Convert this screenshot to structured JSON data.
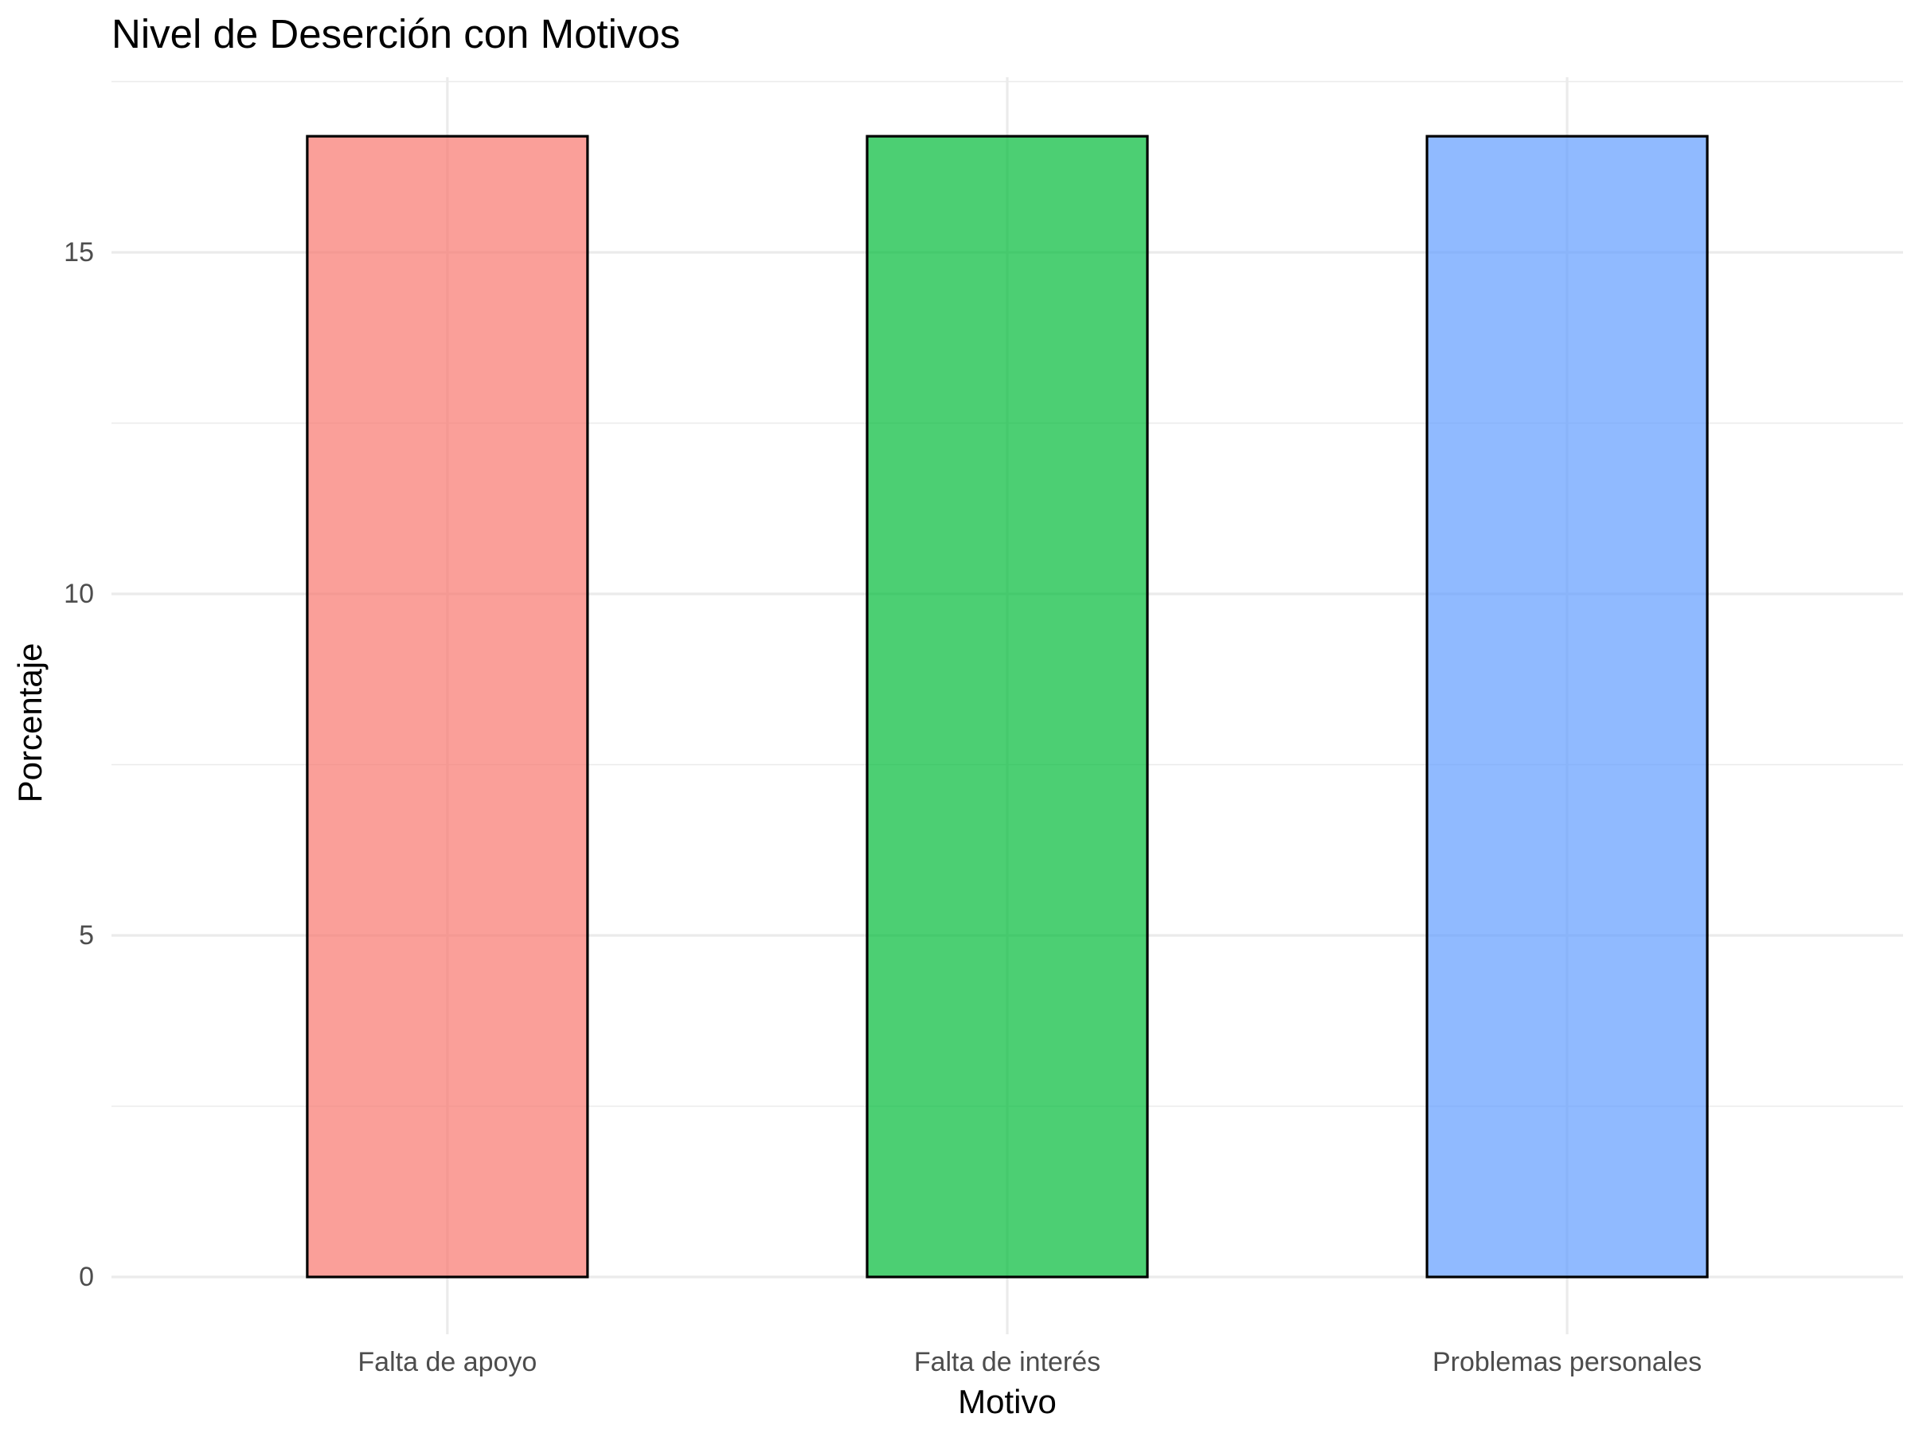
{
  "chart_data": {
    "type": "bar",
    "title": "Nivel de Deserción con Motivos",
    "xlabel": "Motivo",
    "ylabel": "Porcentaje",
    "categories": [
      "Falta de apoyo",
      "Falta de interés",
      "Problemas personales"
    ],
    "values": [
      16.7,
      16.7,
      16.7
    ],
    "colors": [
      "#f8766d",
      "#00ba38",
      "#619cff"
    ],
    "bar_opacity": 0.7,
    "ylim": [
      0,
      17.5
    ],
    "yticks": [
      0,
      5,
      10,
      15
    ],
    "yticks_minor": [
      2.5,
      7.5,
      12.5,
      17.5
    ],
    "grid": true,
    "legend": "none"
  }
}
